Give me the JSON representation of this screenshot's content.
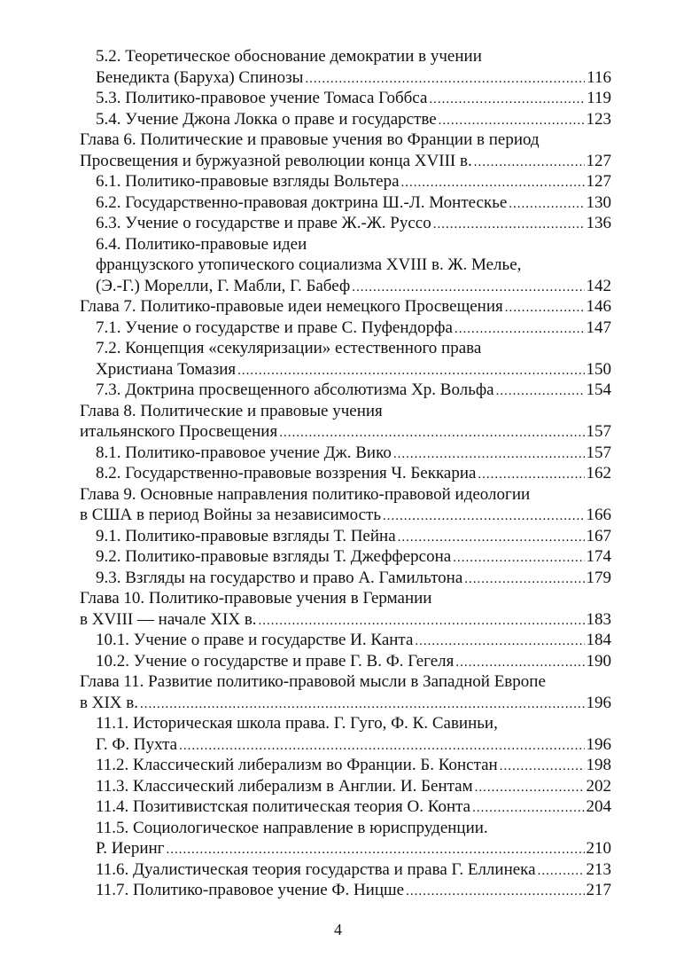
{
  "entries": [
    {
      "level": 2,
      "lines": [
        "5.2. Теоретическое обоснование демократии в учении",
        "Бенедикта (Баруха) Спинозы"
      ],
      "page": "116"
    },
    {
      "level": 2,
      "lines": [
        "5.3. Политико-правовое учение Томаса Гоббса"
      ],
      "page": "119"
    },
    {
      "level": 2,
      "lines": [
        "5.4. Учение Джона Локка о праве и государстве"
      ],
      "page": "123"
    },
    {
      "level": 1,
      "lines": [
        "Глава 6. Политические и правовые учения во Франции в период",
        "Просвещения и буржуазной революции конца XVIII в."
      ],
      "page": "127"
    },
    {
      "level": 2,
      "lines": [
        "6.1. Политико-правовые взгляды Вольтера"
      ],
      "page": "127"
    },
    {
      "level": 2,
      "lines": [
        "6.2. Государственно-правовая доктрина Ш.-Л. Монтескье"
      ],
      "page": "130"
    },
    {
      "level": 2,
      "lines": [
        "6.3. Учение о государстве и праве Ж.-Ж. Руссо"
      ],
      "page": "136"
    },
    {
      "level": 2,
      "lines": [
        "6.4. Политико-правовые идеи",
        "французского утопического социализма XVIII в. Ж. Мелье,",
        "(Э.-Г.) Морелли, Г. Мабли, Г. Бабеф"
      ],
      "page": "142"
    },
    {
      "level": 1,
      "lines": [
        "Глава 7. Политико-правовые идеи немецкого Просвещения"
      ],
      "page": "146"
    },
    {
      "level": 2,
      "lines": [
        "7.1. Учение о государстве и праве С. Пуфендорфа"
      ],
      "page": "147"
    },
    {
      "level": 2,
      "lines": [
        "7.2. Концепция «секуляризации» естественного права",
        "Христиана Томазия"
      ],
      "page": "150"
    },
    {
      "level": 2,
      "lines": [
        "7.3. Доктрина просвещенного абсолютизма Хр. Вольфа"
      ],
      "page": "154"
    },
    {
      "level": 1,
      "lines": [
        "Глава 8. Политические и правовые учения",
        "итальянского Просвещения"
      ],
      "page": "157"
    },
    {
      "level": 2,
      "lines": [
        "8.1. Политико-правовое учение Дж. Вико"
      ],
      "page": "157"
    },
    {
      "level": 2,
      "lines": [
        "8.2. Государственно-правовые воззрения Ч. Беккариа"
      ],
      "page": "162"
    },
    {
      "level": 1,
      "lines": [
        "Глава 9. Основные направления политико-правовой идеологии",
        "в США в период Войны за независимость"
      ],
      "page": "166"
    },
    {
      "level": 2,
      "lines": [
        "9.1. Политико-правовые взгляды Т. Пейна"
      ],
      "page": "167"
    },
    {
      "level": 2,
      "lines": [
        "9.2. Политико-правовые взгляды Т. Джефферсона"
      ],
      "page": "174"
    },
    {
      "level": 2,
      "lines": [
        "9.3. Взгляды на государство и право А. Гамильтона"
      ],
      "page": "179"
    },
    {
      "level": 1,
      "lines": [
        "Глава 10. Политико-правовые учения в Германии",
        "в XVIII — начале XIX в."
      ],
      "page": "183"
    },
    {
      "level": 2,
      "lines": [
        "10.1. Учение о праве и государстве И. Канта"
      ],
      "page": "184"
    },
    {
      "level": 2,
      "lines": [
        "10.2. Учение о государстве и праве Г. В. Ф. Гегеля"
      ],
      "page": "190"
    },
    {
      "level": 1,
      "lines": [
        "Глава 11. Развитие политико-правовой мысли в Западной Европе",
        "в XIX в."
      ],
      "page": "196"
    },
    {
      "level": 2,
      "lines": [
        "11.1. Историческая школа права. Г. Гуго, Ф. К. Савиньи,",
        "Г. Ф. Пухта"
      ],
      "page": "196"
    },
    {
      "level": 2,
      "lines": [
        "11.2. Классический либерализм во Франции. Б. Констан"
      ],
      "page": "198"
    },
    {
      "level": 2,
      "lines": [
        "11.3. Классический либерализм в Англии. И. Бентам"
      ],
      "page": "202"
    },
    {
      "level": 2,
      "lines": [
        "11.4. Позитивистская политическая теория О. Конта"
      ],
      "page": "204"
    },
    {
      "level": 2,
      "lines": [
        "11.5. Социологическое направление в юриспруденции.",
        "Р. Иеринг"
      ],
      "page": "210"
    },
    {
      "level": 2,
      "lines": [
        "11.6. Дуалистическая теория государства и права Г. Еллинека"
      ],
      "page": "213"
    },
    {
      "level": 2,
      "lines": [
        "11.7. Политико-правовое учение Ф. Ницше"
      ],
      "page": "217"
    }
  ],
  "page_number": "4"
}
